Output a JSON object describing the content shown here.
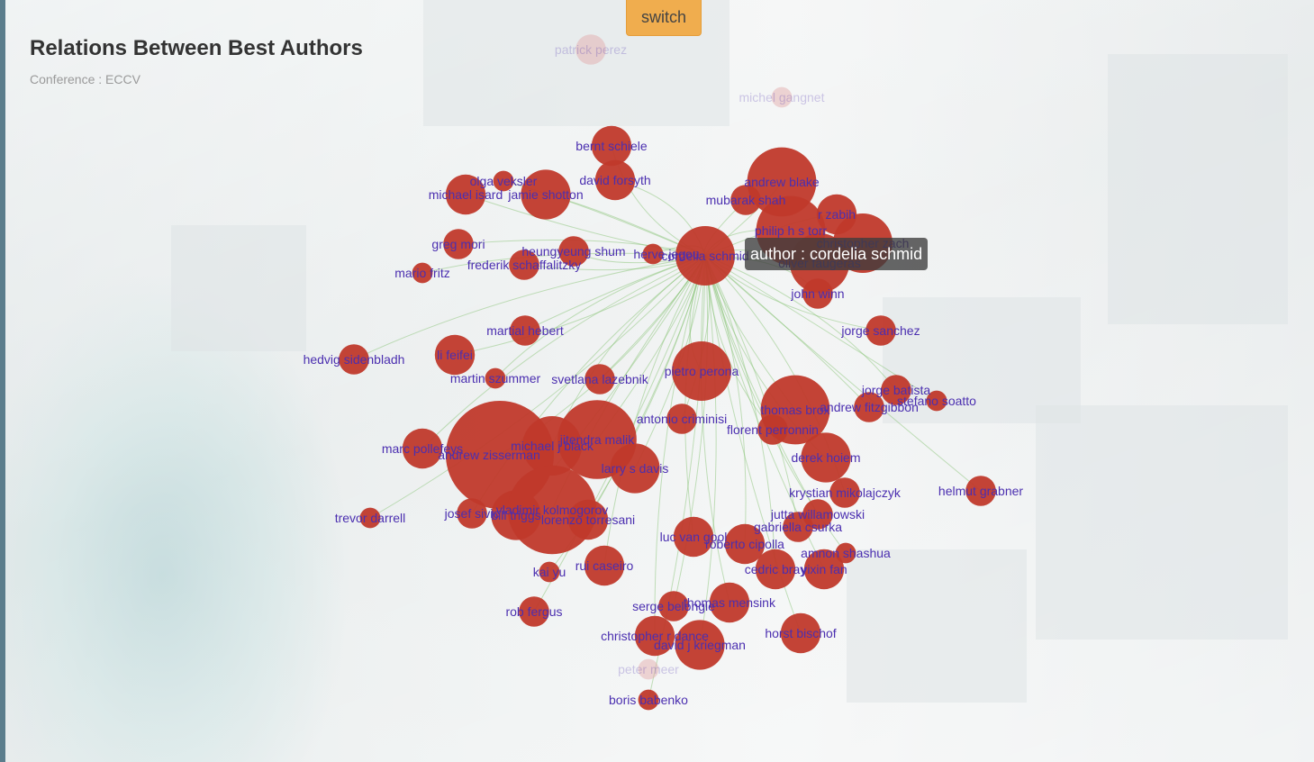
{
  "header": {
    "title": "Relations Between Best Authors",
    "subtitle": "Conference : ECCV",
    "switch_label": "switch"
  },
  "tooltip": {
    "text": "author : cordelia schmid"
  },
  "colors": {
    "node": "#c0392b",
    "faded_node": "#e3a6a6",
    "label": "#4b2fb0",
    "edge": "#7fbf6a",
    "switch_bg": "#f0ad4e"
  },
  "graph": {
    "focus": "cordelia schmid",
    "authors": [
      {
        "name": "bernt schiele",
        "weight": 3,
        "highlight": true
      },
      {
        "name": "david forsyth",
        "weight": 3,
        "highlight": true
      },
      {
        "name": "olga veksler",
        "weight": 1,
        "highlight": true
      },
      {
        "name": "michael isard",
        "weight": 3,
        "highlight": true
      },
      {
        "name": "jamie shotton",
        "weight": 4,
        "highlight": true
      },
      {
        "name": "andrew blake",
        "weight": 6,
        "highlight": true
      },
      {
        "name": "mubarak shah",
        "weight": 2,
        "highlight": true
      },
      {
        "name": "r zabih",
        "weight": 3,
        "highlight": true
      },
      {
        "name": "philip h s torr",
        "weight": 6,
        "highlight": true
      },
      {
        "name": "christopher zach",
        "weight": 5,
        "highlight": true
      },
      {
        "name": "oliver faugeras",
        "weight": 5,
        "highlight": true
      },
      {
        "name": "greg mori",
        "weight": 2,
        "highlight": true
      },
      {
        "name": "heungyeung shum",
        "weight": 2,
        "highlight": true
      },
      {
        "name": "herve jegou",
        "weight": 1,
        "highlight": true
      },
      {
        "name": "cordelia schmid",
        "weight": 5,
        "highlight": true
      },
      {
        "name": "frederik schaffalitzky",
        "weight": 2,
        "highlight": true
      },
      {
        "name": "mario fritz",
        "weight": 1,
        "highlight": true
      },
      {
        "name": "john winn",
        "weight": 2,
        "highlight": true
      },
      {
        "name": "jorge sanchez",
        "weight": 2,
        "highlight": true
      },
      {
        "name": "martial hebert",
        "weight": 2,
        "highlight": true
      },
      {
        "name": "hedvig sidenbladh",
        "weight": 2,
        "highlight": true
      },
      {
        "name": "li feifei",
        "weight": 3,
        "highlight": true
      },
      {
        "name": "martin szummer",
        "weight": 1,
        "highlight": true
      },
      {
        "name": "svetlana lazebnik",
        "weight": 2,
        "highlight": true
      },
      {
        "name": "pietro perona",
        "weight": 5,
        "highlight": true
      },
      {
        "name": "jorge batista",
        "weight": 2,
        "highlight": true
      },
      {
        "name": "stefano soatto",
        "weight": 1,
        "highlight": true
      },
      {
        "name": "andrew fitzgibbon",
        "weight": 2,
        "highlight": true
      },
      {
        "name": "thomas brox",
        "weight": 6,
        "highlight": true
      },
      {
        "name": "antonio criminisi",
        "weight": 2,
        "highlight": true
      },
      {
        "name": "florent perronnin",
        "weight": 2,
        "highlight": true
      },
      {
        "name": "jitendra malik",
        "weight": 7,
        "highlight": true
      },
      {
        "name": "michael j black",
        "weight": 5,
        "highlight": true
      },
      {
        "name": "andrew zisserman",
        "weight": 10,
        "highlight": true
      },
      {
        "name": "marc pollefeys",
        "weight": 3,
        "highlight": true
      },
      {
        "name": "larry s davis",
        "weight": 4,
        "highlight": true
      },
      {
        "name": "derek hoiem",
        "weight": 4,
        "highlight": true
      },
      {
        "name": "krystian mikolajczyk",
        "weight": 2,
        "highlight": true
      },
      {
        "name": "helmut grabner",
        "weight": 2,
        "highlight": true
      },
      {
        "name": "trevor darrell",
        "weight": 1,
        "highlight": true
      },
      {
        "name": "josef sivic",
        "weight": 2,
        "highlight": true
      },
      {
        "name": "bill triggs",
        "weight": 4,
        "highlight": true
      },
      {
        "name": "vladimir kolmogorov",
        "weight": 8,
        "highlight": true
      },
      {
        "name": "lorenzo torresani",
        "weight": 3,
        "highlight": true
      },
      {
        "name": "jutta willamowski",
        "weight": 2,
        "highlight": true
      },
      {
        "name": "gabriella csurka",
        "weight": 2,
        "highlight": true
      },
      {
        "name": "luc van gool",
        "weight": 3,
        "highlight": true
      },
      {
        "name": "roberto cipolla",
        "weight": 3,
        "highlight": true
      },
      {
        "name": "amnon shashua",
        "weight": 1,
        "highlight": true
      },
      {
        "name": "cedric bray",
        "weight": 3,
        "highlight": true
      },
      {
        "name": "yixin fan",
        "weight": 3,
        "highlight": true
      },
      {
        "name": "kai yu",
        "weight": 1,
        "highlight": true
      },
      {
        "name": "rui caseiro",
        "weight": 3,
        "highlight": true
      },
      {
        "name": "serge belongie",
        "weight": 2,
        "highlight": true
      },
      {
        "name": "thomas mensink",
        "weight": 3,
        "highlight": true
      },
      {
        "name": "rob fergus",
        "weight": 2,
        "highlight": true
      },
      {
        "name": "christopher r dance",
        "weight": 3,
        "highlight": true
      },
      {
        "name": "david j kriegman",
        "weight": 4,
        "highlight": true
      },
      {
        "name": "horst bischof",
        "weight": 3,
        "highlight": true
      },
      {
        "name": "boris babenko",
        "weight": 1,
        "highlight": true
      },
      {
        "name": "patrick perez",
        "weight": 2,
        "highlight": false
      },
      {
        "name": "michel gangnet",
        "weight": 1,
        "highlight": false
      },
      {
        "name": "peter meer",
        "weight": 1,
        "highlight": false
      }
    ]
  }
}
